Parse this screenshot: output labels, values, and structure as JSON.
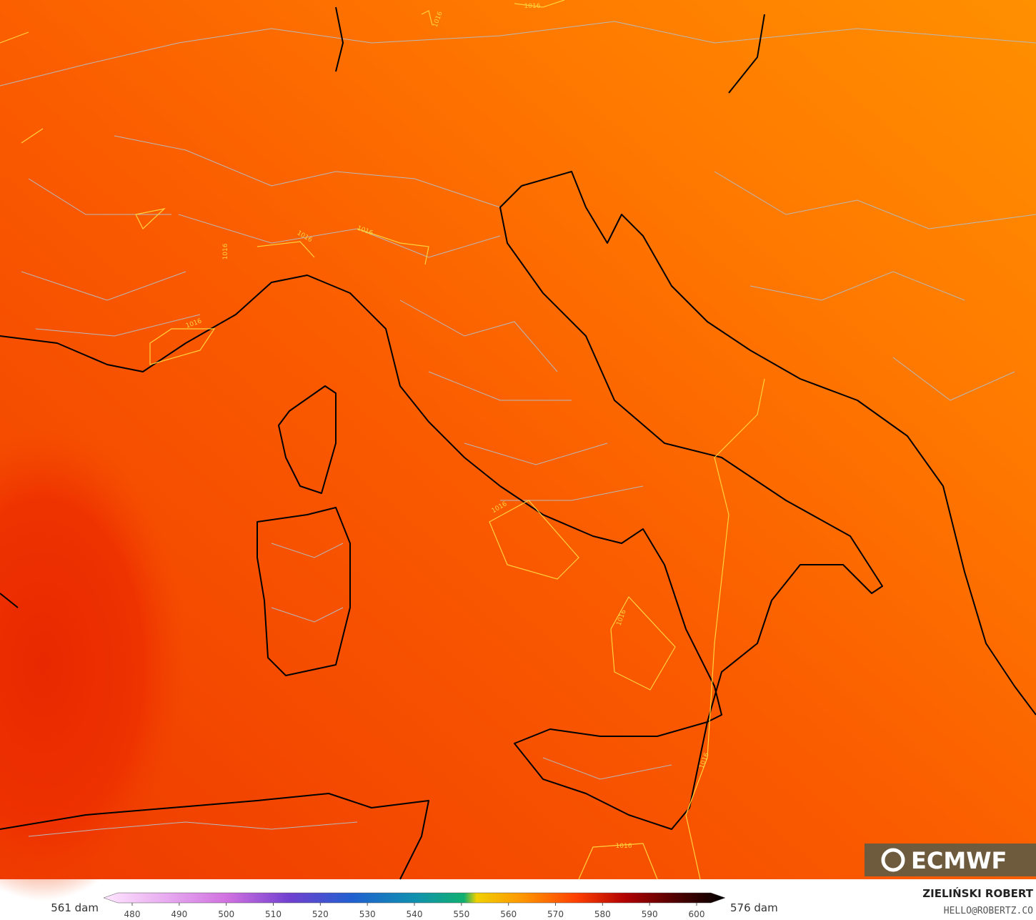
{
  "map": {
    "contour_labels": [
      "1016",
      "1016",
      "1016",
      "1016",
      "1016",
      "1016",
      "1016",
      "1016",
      "1016",
      "1016"
    ]
  },
  "colorbar": {
    "left_label": "561 dam",
    "right_label": "576 dam",
    "ticks": [
      480,
      490,
      500,
      510,
      520,
      530,
      540,
      550,
      560,
      570,
      580,
      590,
      600
    ]
  },
  "logo": {
    "text": "ECMWF"
  },
  "credit": {
    "author": "ZIELIŃSKI ROBERT",
    "email": "HELLO@ROBERTZ.CO"
  }
}
